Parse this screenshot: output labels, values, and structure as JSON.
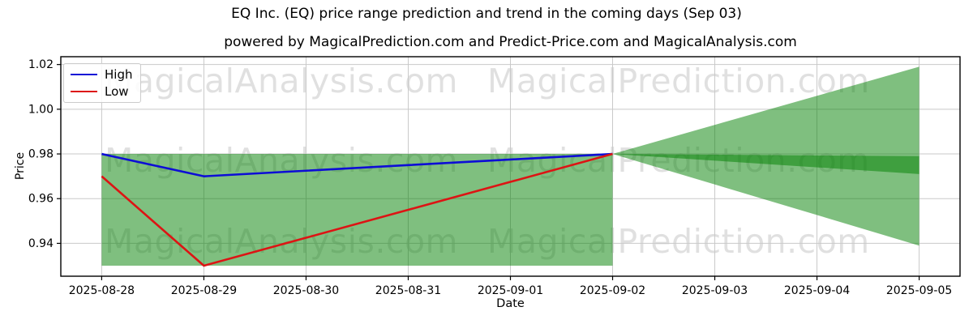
{
  "figure": {
    "title": "EQ Inc. (EQ) price range prediction and trend in the coming days (Sep 03)",
    "subtitle": "powered by MagicalPrediction.com and Predict-Price.com and MagicalAnalysis.com"
  },
  "watermark": {
    "left_text": "MagicalAnalysis.com",
    "right_text": "MagicalPrediction.com"
  },
  "legend": {
    "items": [
      {
        "label": "High",
        "color": "#0d0dd6"
      },
      {
        "label": "Low",
        "color": "#dd1414"
      }
    ]
  },
  "chart_data": {
    "type": "line",
    "title": "EQ Inc. (EQ) price range prediction and trend in the coming days (Sep 03)",
    "xlabel": "Date",
    "ylabel": "Price",
    "categories": [
      "2025-08-28",
      "2025-08-29",
      "2025-08-30",
      "2025-08-31",
      "2025-09-01",
      "2025-09-02",
      "2025-09-03",
      "2025-09-04",
      "2025-09-05"
    ],
    "yticks": [
      "0.94",
      "0.96",
      "0.98",
      "1.00",
      "1.02"
    ],
    "ylim": [
      0.9253,
      1.0235
    ],
    "grid": true,
    "grid_color": "#c9c9c9",
    "legend_position": "upper left",
    "band_color": "rgba(0,128,0,0.5)",
    "series": [
      {
        "name": "High",
        "color": "#0d0dd6",
        "values": [
          0.98,
          0.97,
          0.9725,
          0.975,
          0.9775,
          0.98,
          null,
          null,
          null
        ]
      },
      {
        "name": "Low",
        "color": "#dd1414",
        "values": [
          0.97,
          0.93,
          0.9425,
          0.955,
          0.9675,
          0.98,
          null,
          null,
          null
        ]
      }
    ],
    "bands": [
      {
        "name": "historical-range",
        "x": [
          "2025-08-28",
          "2025-09-02"
        ],
        "ymin": [
          0.93,
          0.93
        ],
        "ymax": [
          0.98,
          0.98
        ]
      },
      {
        "name": "forecast-range",
        "x": [
          "2025-09-02",
          "2025-09-05"
        ],
        "ymin": [
          0.98,
          0.939
        ],
        "ymax": [
          0.98,
          1.019
        ]
      },
      {
        "name": "forecast-trend",
        "x": [
          "2025-09-02",
          "2025-09-05"
        ],
        "ymin": [
          0.98,
          0.971
        ],
        "ymax": [
          0.98,
          0.979
        ]
      }
    ]
  }
}
